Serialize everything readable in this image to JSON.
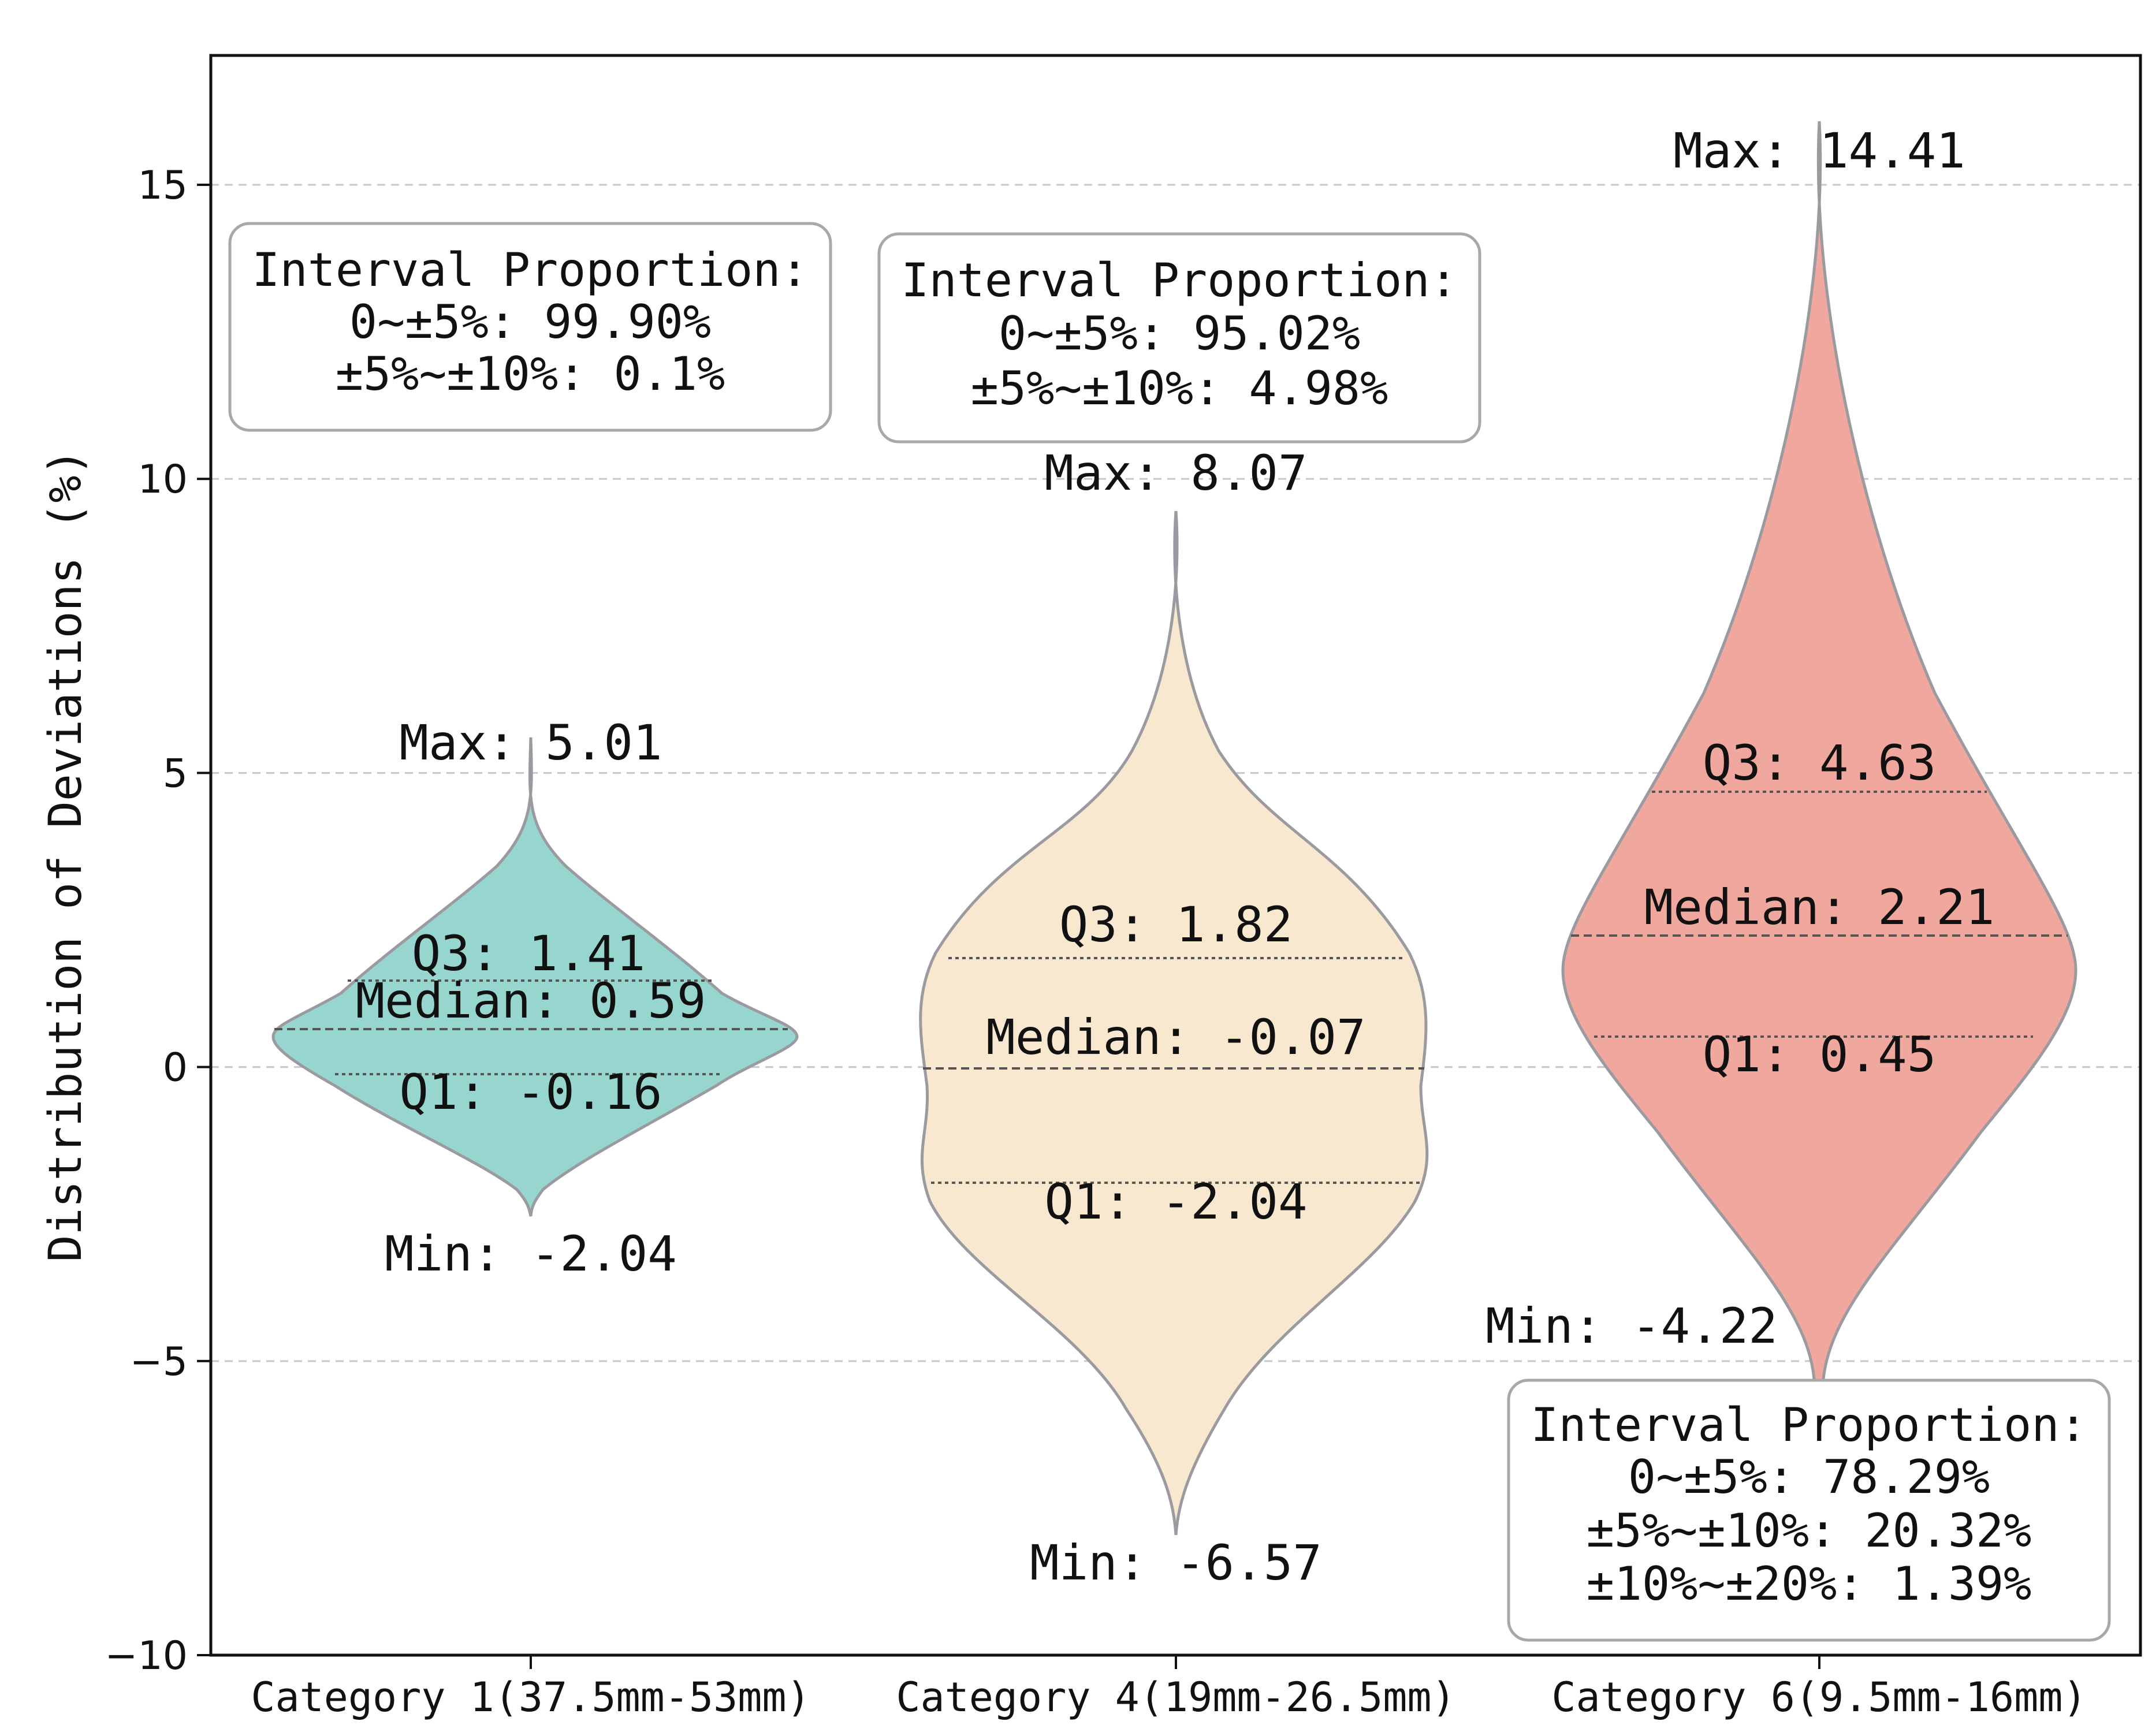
{
  "chart_data": {
    "type": "violin",
    "ylabel": "Distribution of Deviations (%)",
    "ylim": [
      -10,
      17.2
    ],
    "yticks": [
      -10,
      -5,
      0,
      5,
      10,
      15
    ],
    "ytick_labels": [
      "−10",
      "−5",
      "0",
      "5",
      "10",
      "15"
    ],
    "grid": "horizontal-dashed",
    "categories": [
      {
        "label": "Category 1(37.5mm-53mm)",
        "color": "#97d5cf",
        "max_label": "Max: 5.01",
        "min_label": "Min: -2.04",
        "q3_label": "Q3:  1.41",
        "median_label": "Median:  0.59",
        "q1_label": "Q1:  -0.16",
        "max": 5.01,
        "min": -2.04,
        "q3": 1.41,
        "median": 0.59,
        "q1": -0.16,
        "interval_title": "Interval Proportion:",
        "intervals": [
          "0~±5%: 99.90%",
          "±5%~±10%: 0.1%"
        ]
      },
      {
        "label": "Category 4(19mm-26.5mm)",
        "color": "#f8e8cf",
        "max_label": "Max: 8.07",
        "min_label": "Min: -6.57",
        "q3_label": "Q3:  1.82",
        "median_label": "Median:  -0.07",
        "q1_label": "Q1:  -2.04",
        "max": 8.07,
        "min": -6.57,
        "q3": 1.82,
        "median": -0.07,
        "q1": -2.04,
        "interval_title": "Interval Proportion:",
        "intervals": [
          "0~±5%: 95.02%",
          "±5%~±10%: 4.98%"
        ]
      },
      {
        "label": "Category 6(9.5mm-16mm)",
        "color": "#f0a89e",
        "max_label": "Max: 14.41",
        "min_label": "Min: -4.22",
        "q3_label": "Q3:  4.63",
        "median_label": "Median:  2.21",
        "q1_label": "Q1:  0.45",
        "max": 14.41,
        "min": -4.22,
        "q3": 4.63,
        "median": 2.21,
        "q1": 0.45,
        "interval_title": "Interval Proportion:",
        "intervals": [
          "0~±5%: 78.29%",
          "±5%~±10%: 20.32%",
          "±10%~±20%: 1.39%"
        ]
      }
    ]
  }
}
